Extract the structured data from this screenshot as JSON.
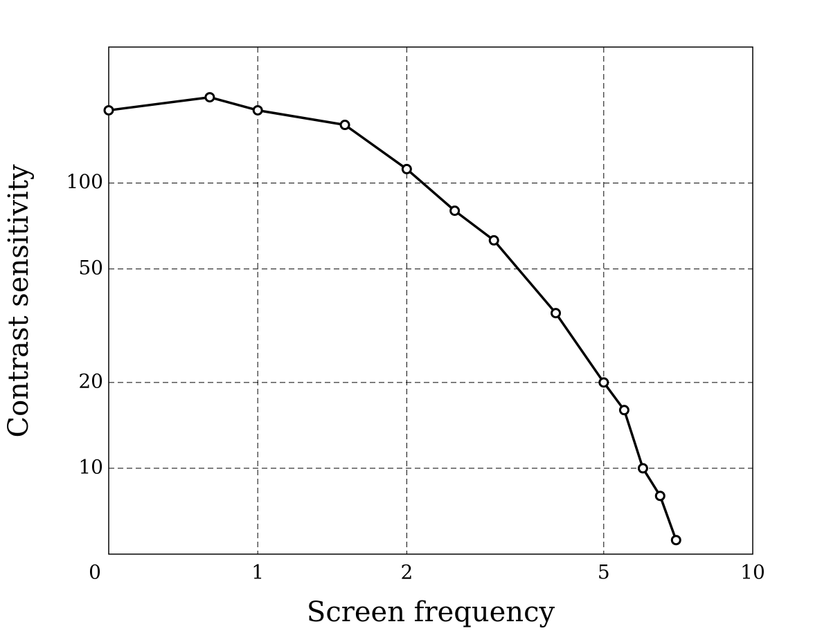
{
  "chart_data": {
    "type": "line",
    "x_label": "Screen frequency",
    "y_label": "Contrast sensitivity",
    "x": [
      0.5,
      0.8,
      1,
      1.5,
      2,
      2.5,
      3,
      4,
      5,
      5.5,
      6,
      6.5,
      7
    ],
    "values": [
      180,
      200,
      180,
      160,
      112,
      80,
      63,
      35,
      20,
      16,
      10,
      8,
      5.6
    ],
    "color": "#000000",
    "xscale": "log",
    "yscale": "log",
    "xlim": [
      0.5,
      10
    ],
    "ylim": [
      5,
      300
    ],
    "xticks": [
      {
        "value": 0.5,
        "label": "0"
      },
      1,
      2,
      5,
      10
    ],
    "yticks": [
      10,
      20,
      50,
      100
    ],
    "grid": true
  }
}
